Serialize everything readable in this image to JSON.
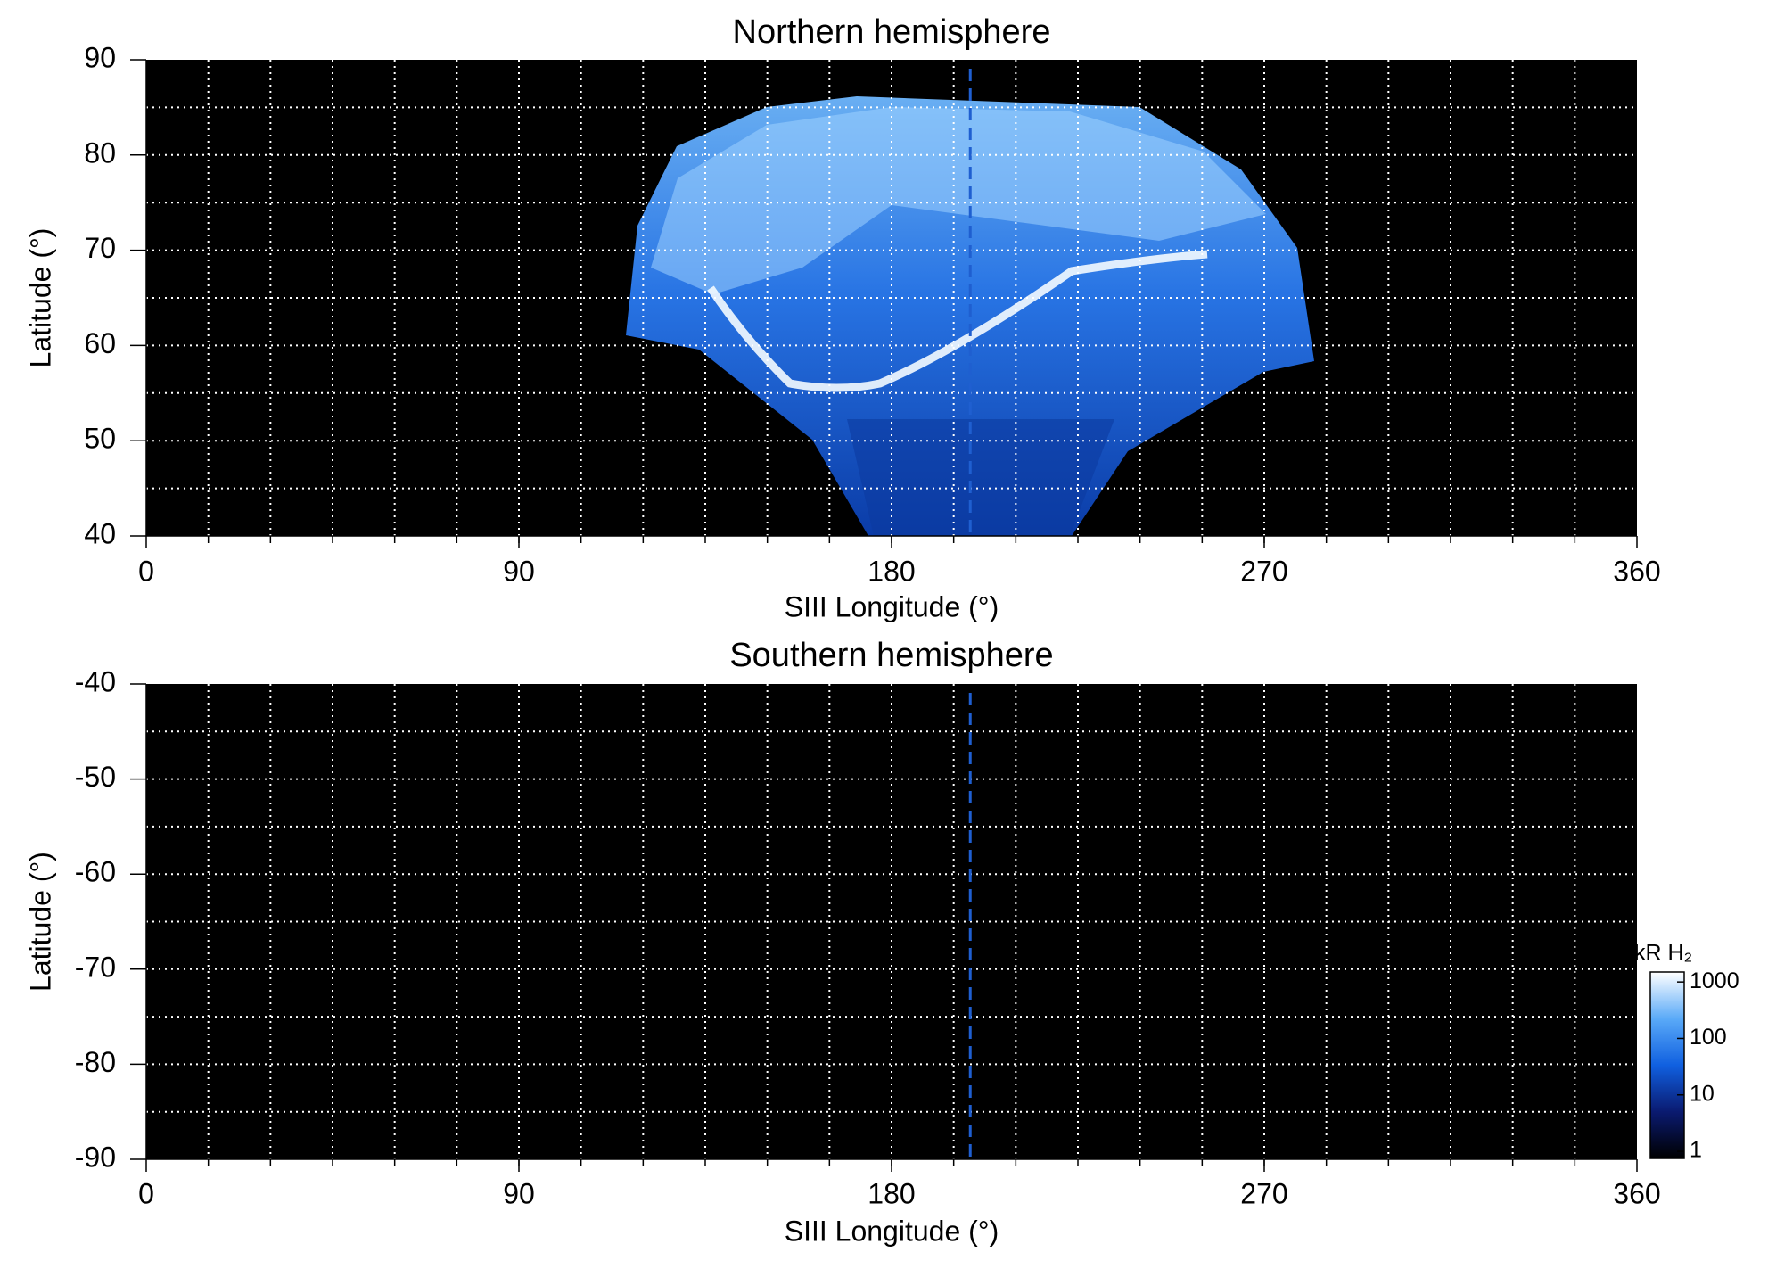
{
  "chart_data": [
    {
      "type": "map",
      "title": "Northern hemisphere",
      "xlabel": "SIII Longitude (°)",
      "ylabel": "Latitude (°)",
      "xlim": [
        0,
        360
      ],
      "xticks": [
        0,
        90,
        180,
        270,
        360
      ],
      "xgrid": [
        15,
        30,
        45,
        60,
        75,
        90,
        105,
        120,
        135,
        150,
        165,
        180,
        195,
        210,
        225,
        240,
        255,
        270,
        285,
        300,
        315,
        330,
        345
      ],
      "ylim": [
        40,
        90
      ],
      "yticks": [
        40,
        50,
        60,
        70,
        80,
        90
      ],
      "ygrid": [
        45,
        50,
        55,
        60,
        65,
        70,
        75,
        80,
        85
      ],
      "vline": {
        "x": 199,
        "color": "#1f5fd0"
      }
    },
    {
      "type": "map",
      "title": "Southern hemisphere",
      "xlabel": "SIII Longitude (°)",
      "ylabel": "Latitude (°)",
      "xlim": [
        0,
        360
      ],
      "xticks": [
        0,
        90,
        180,
        270,
        360
      ],
      "xgrid": [
        15,
        30,
        45,
        60,
        75,
        90,
        105,
        120,
        135,
        150,
        165,
        180,
        195,
        210,
        225,
        240,
        255,
        270,
        285,
        300,
        315,
        330,
        345
      ],
      "ylim": [
        -90,
        -40
      ],
      "yticks": [
        -90,
        -80,
        -70,
        -60,
        -50,
        -40
      ],
      "ygrid": [
        -85,
        -80,
        -75,
        -70,
        -65,
        -60,
        -55,
        -50,
        -45
      ],
      "vline": {
        "x": 199,
        "color": "#1f5fd0"
      },
      "colorbar": {
        "label": "kR H₂",
        "log": true,
        "lim": [
          0.75,
          1500
        ],
        "ticks": [
          1,
          10,
          100,
          1000
        ],
        "colors": [
          "#000000",
          "#0a1a70",
          "#1060e0",
          "#5aaaf8",
          "#ffffff"
        ]
      }
    }
  ]
}
